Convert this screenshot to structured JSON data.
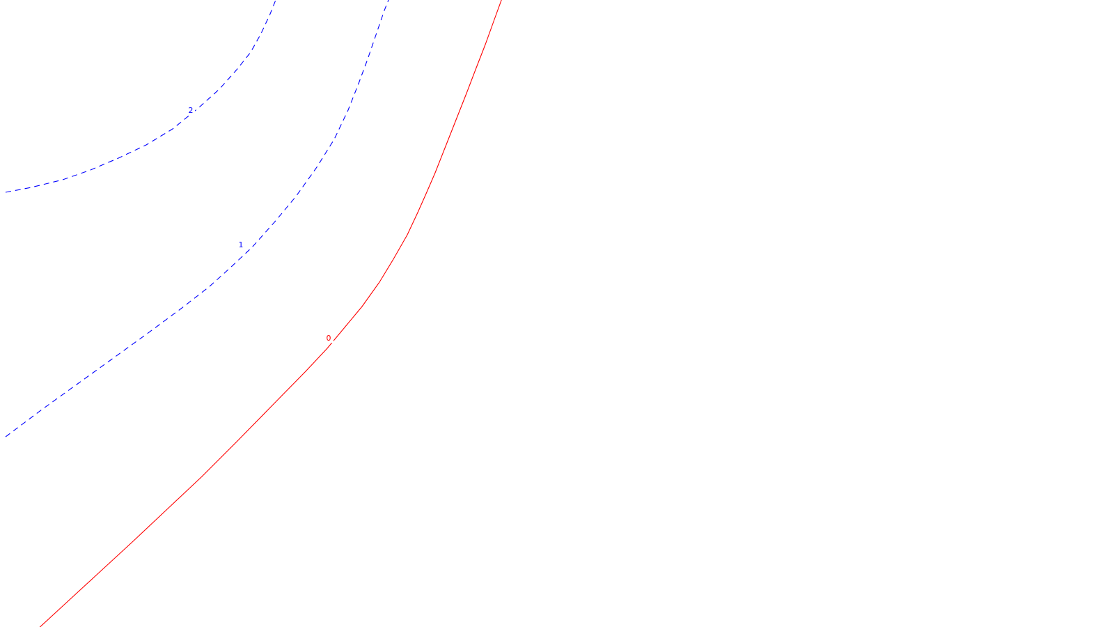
{
  "chart_data": {
    "type": "contour",
    "title": "",
    "xlabel": "",
    "ylabel": "",
    "grid": false,
    "legend": "none",
    "contours": [
      {
        "level": "0",
        "label": "0",
        "style": "solid",
        "color": "#ff0000"
      },
      {
        "level": "1",
        "label": "1",
        "style": "dashed",
        "color": "#0000ff"
      },
      {
        "level": "2",
        "label": "2",
        "style": "dashed",
        "color": "#0000ff"
      }
    ]
  }
}
